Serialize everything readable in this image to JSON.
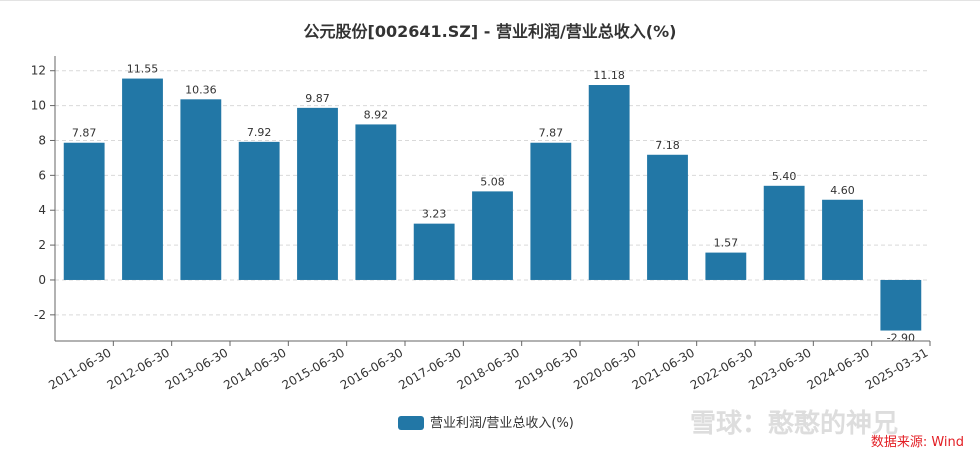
{
  "chart_data": {
    "type": "bar",
    "title": "公元股份[002641.SZ] - 营业利润/营业总收入(%)",
    "categories": [
      "2011-06-30",
      "2012-06-30",
      "2013-06-30",
      "2014-06-30",
      "2015-06-30",
      "2016-06-30",
      "2017-06-30",
      "2018-06-30",
      "2019-06-30",
      "2020-06-30",
      "2021-06-30",
      "2022-06-30",
      "2023-06-30",
      "2024-06-30",
      "2025-03-31"
    ],
    "series": [
      {
        "name": "营业利润/营业总收入(%)",
        "values": [
          7.87,
          11.55,
          10.36,
          7.92,
          9.87,
          8.92,
          3.23,
          5.08,
          7.87,
          11.18,
          7.18,
          1.57,
          5.4,
          4.6,
          -2.9
        ],
        "labels": [
          "7.87",
          "11.55",
          "10.36",
          "7.92",
          "9.87",
          "8.92",
          "3.23",
          "5.08",
          "7.87",
          "11.18",
          "7.18",
          "1.57",
          "5.40",
          "4.60",
          "-2.90"
        ]
      }
    ],
    "yticks": [
      "12",
      "10",
      "8",
      "6",
      "4",
      "2",
      "0",
      "-2"
    ],
    "ylim": [
      -3.5,
      12.5
    ],
    "grid": true,
    "legend_position": "bottom-center",
    "colors": {
      "bar": "#2277a6"
    }
  },
  "watermark": "雪球：憨憨的神兄",
  "source": "数据来源: Wind"
}
